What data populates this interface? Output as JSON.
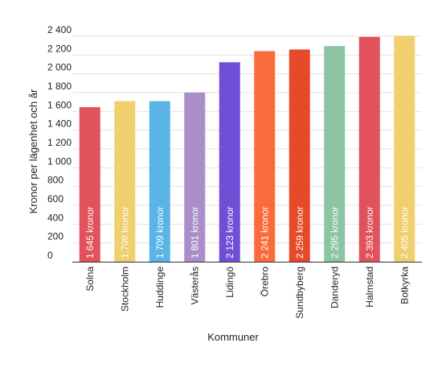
{
  "chart_data": {
    "type": "bar",
    "xlabel": "Kommuner",
    "ylabel": "Kronor per lägenhet och år",
    "ylim": [
      0,
      2400
    ],
    "yticks": [
      0,
      200,
      400,
      600,
      800,
      1000,
      1200,
      1400,
      1600,
      1800,
      2000,
      2200,
      2400
    ],
    "ytick_labels": [
      "0",
      "200",
      "400",
      "600",
      "800",
      "1 000",
      "1 200",
      "1 400",
      "1 600",
      "1 800",
      "2 000",
      "2 200",
      "2 400"
    ],
    "grid": true,
    "categories": [
      "Solna",
      "Stockholm",
      "Huddinge",
      "Västerås",
      "Lidingö",
      "Örebro",
      "Sundbyberg",
      "Danderyd",
      "Halmstad",
      "Botkyrka"
    ],
    "values": [
      1645,
      1709,
      1709,
      1801,
      2123,
      2241,
      2259,
      2295,
      2393,
      2405
    ],
    "data_labels": [
      "1 645 kronor",
      "1 709 kronor",
      "1 709 kronor",
      "1 801 kronor",
      "2 123 kronor",
      "2 241 kronor",
      "2 259 kronor",
      "2 295 kronor",
      "2 393 kronor",
      "2 405 kronor"
    ],
    "colors": [
      "#e0525c",
      "#f0cf6e",
      "#5ab4e6",
      "#a98ec8",
      "#6e4fd6",
      "#fb6a3a",
      "#e64a2a",
      "#8cc4a4",
      "#e0525c",
      "#f0cf6e"
    ]
  }
}
